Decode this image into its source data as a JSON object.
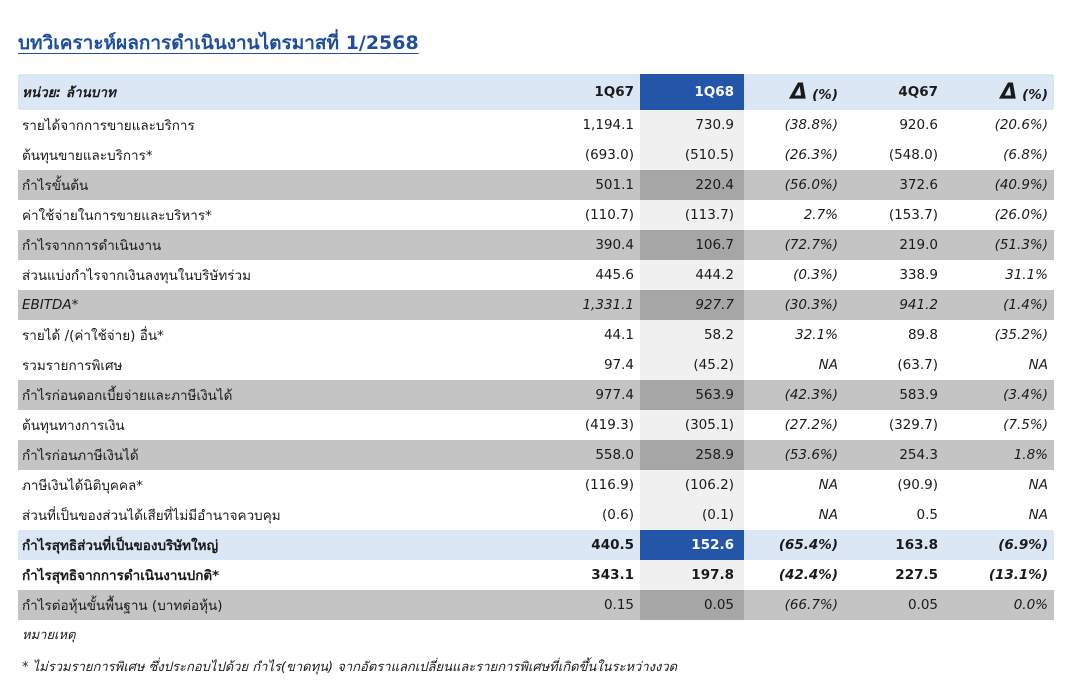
{
  "title": "บทวิเคราะห์ผลการดำเนินงานไตรมาสที่ 1/2568",
  "header": {
    "unit": "หน่วย: ล้านบาท",
    "col1": "1Q67",
    "col2": "1Q68",
    "delta1_symbol": "Δ",
    "delta1_pct": "(%)",
    "col3": "4Q67",
    "delta2_symbol": "Δ",
    "delta2_pct": "(%)"
  },
  "rows": [
    {
      "label": "รายได้จากการขายและบริการ",
      "q67": "1,194.1",
      "q68": "730.9",
      "d1": "(38.8%)",
      "q4": "920.6",
      "d2": "(20.6%)"
    },
    {
      "label": "ต้นทุนขายและบริการ*",
      "q67": "(693.0)",
      "q68": "(510.5)",
      "d1": "(26.3%)",
      "q4": "(548.0)",
      "d2": "(6.8%)"
    },
    {
      "label": "กำไรขั้นต้น",
      "q67": "501.1",
      "q68": "220.4",
      "d1": "(56.0%)",
      "q4": "372.6",
      "d2": "(40.9%)"
    },
    {
      "label": "ค่าใช้จ่ายในการขายและบริหาร*",
      "q67": "(110.7)",
      "q68": "(113.7)",
      "d1": "2.7%",
      "q4": "(153.7)",
      "d2": "(26.0%)"
    },
    {
      "label": "กำไรจากการดำเนินงาน",
      "q67": "390.4",
      "q68": "106.7",
      "d1": "(72.7%)",
      "q4": "219.0",
      "d2": "(51.3%)"
    },
    {
      "label": "ส่วนแบ่งกำไรจากเงินลงทุนในบริษัทร่วม",
      "q67": "445.6",
      "q68": "444.2",
      "d1": "(0.3%)",
      "q4": "338.9",
      "d2": "31.1%"
    },
    {
      "label": "EBITDA*",
      "q67": "1,331.1",
      "q68": "927.7",
      "d1": "(30.3%)",
      "q4": "941.2",
      "d2": "(1.4%)"
    },
    {
      "label": "รายได้ /(ค่าใช้จ่าย) อื่น*",
      "q67": "44.1",
      "q68": "58.2",
      "d1": "32.1%",
      "q4": "89.8",
      "d2": "(35.2%)"
    },
    {
      "label": "รวมรายการพิเศษ",
      "q67": "97.4",
      "q68": "(45.2)",
      "d1": "NA",
      "q4": "(63.7)",
      "d2": "NA"
    },
    {
      "label": "กำไรก่อนดอกเบี้ยจ่ายและภาษีเงินได้",
      "q67": "977.4",
      "q68": "563.9",
      "d1": "(42.3%)",
      "q4": "583.9",
      "d2": "(3.4%)"
    },
    {
      "label": "ต้นทุนทางการเงิน",
      "q67": "(419.3)",
      "q68": "(305.1)",
      "d1": "(27.2%)",
      "q4": "(329.7)",
      "d2": "(7.5%)"
    },
    {
      "label": "กำไรก่อนภาษีเงินได้",
      "q67": "558.0",
      "q68": "258.9",
      "d1": "(53.6%)",
      "q4": "254.3",
      "d2": "1.8%"
    },
    {
      "label": "ภาษีเงินได้นิติบุคคล*",
      "q67": "(116.9)",
      "q68": "(106.2)",
      "d1": "NA",
      "q4": "(90.9)",
      "d2": "NA"
    },
    {
      "label": "ส่วนที่เป็นของส่วนได้เสียที่ไม่มีอำนาจควบคุม",
      "q67": "(0.6)",
      "q68": "(0.1)",
      "d1": "NA",
      "q4": "0.5",
      "d2": "NA"
    },
    {
      "label": "กำไรสุทธิส่วนที่เป็นของบริษัทใหญ่",
      "q67": "440.5",
      "q68": "152.6",
      "d1": "(65.4%)",
      "q4": "163.8",
      "d2": "(6.9%)"
    },
    {
      "label": "กำไรสุทธิจากการดำเนินงานปกติ*",
      "q67": "343.1",
      "q68": "197.8",
      "d1": "(42.4%)",
      "q4": "227.5",
      "d2": "(13.1%)"
    },
    {
      "label": "กำไรต่อหุ้นขั้นพื้นฐาน (บาทต่อหุ้น)",
      "q67": "0.15",
      "q68": "0.05",
      "d1": "(66.7%)",
      "q4": "0.05",
      "d2": "0.0%"
    }
  ],
  "notes_label": "หมายเหตุ",
  "footnote": "* ไม่รวมรายการพิเศษ ซึ่งประกอบไปด้วย กำไร(ขาดทุน) จากอัตราแลกเปลี่ยนและรายการพิเศษที่เกิดขึ้นในระหว่างงวด",
  "colors": {
    "title": "#1f4e9c",
    "header_bg": "#dbe7f4",
    "highlight_col": "#2356a8",
    "gray_row": "#c4c4c4",
    "gray_row_highlight": "#a6a6a6"
  }
}
